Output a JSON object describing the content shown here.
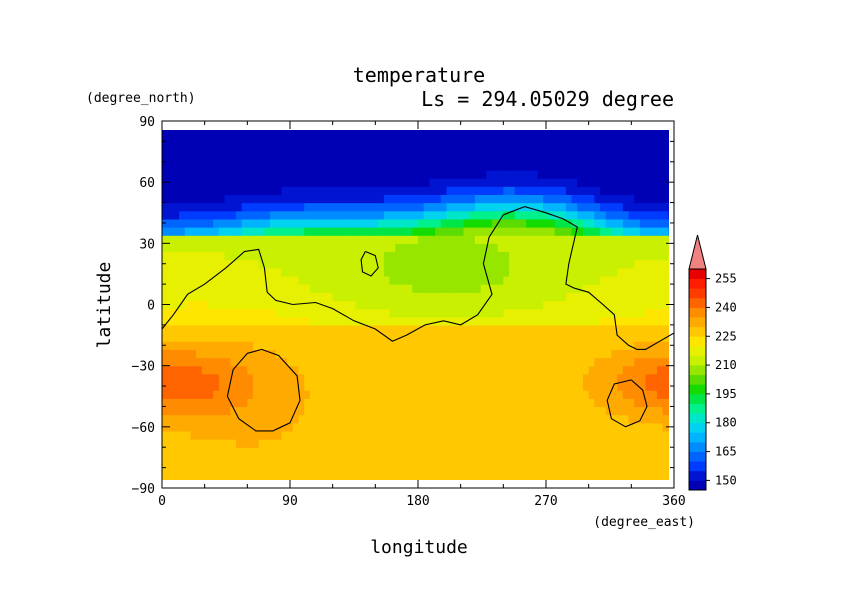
{
  "chart_data": {
    "type": "heatmap",
    "title": "temperature",
    "subtitle": "Ls = 294.05029 degree",
    "xlabel": "longitude",
    "ylabel": "latitude",
    "x_units": "(degree_east)",
    "y_units": "(degree_north)",
    "xlim": [
      0,
      360
    ],
    "ylim": [
      -90,
      90
    ],
    "x_ticks": [
      0,
      90,
      180,
      270,
      360
    ],
    "y_ticks": [
      -90,
      -60,
      -30,
      0,
      30,
      60,
      90
    ],
    "colorbar": {
      "tick_labels": [
        150,
        165,
        180,
        195,
        210,
        225,
        240,
        255
      ],
      "levels": [
        145,
        150,
        155,
        160,
        165,
        170,
        175,
        180,
        185,
        190,
        195,
        200,
        205,
        210,
        215,
        220,
        225,
        230,
        235,
        240,
        245,
        250,
        255,
        260
      ],
      "colors": [
        "#0000b4",
        "#0014d2",
        "#003cff",
        "#0064ff",
        "#008cff",
        "#00b4ff",
        "#00d2f0",
        "#00e6c8",
        "#00f08c",
        "#00e646",
        "#14dc00",
        "#5adc00",
        "#96e600",
        "#c8f000",
        "#e6f000",
        "#ffe600",
        "#ffc800",
        "#ffaa00",
        "#ff8c00",
        "#ff6400",
        "#ff3c00",
        "#ff1e00",
        "#e60000"
      ],
      "extend_color": "#f08282"
    },
    "contours": [
      {
        "label": "continent outline"
      },
      {
        "label": "southern oval 1"
      },
      {
        "label": "southern oval 2"
      },
      {
        "label": "northern islet"
      }
    ]
  }
}
